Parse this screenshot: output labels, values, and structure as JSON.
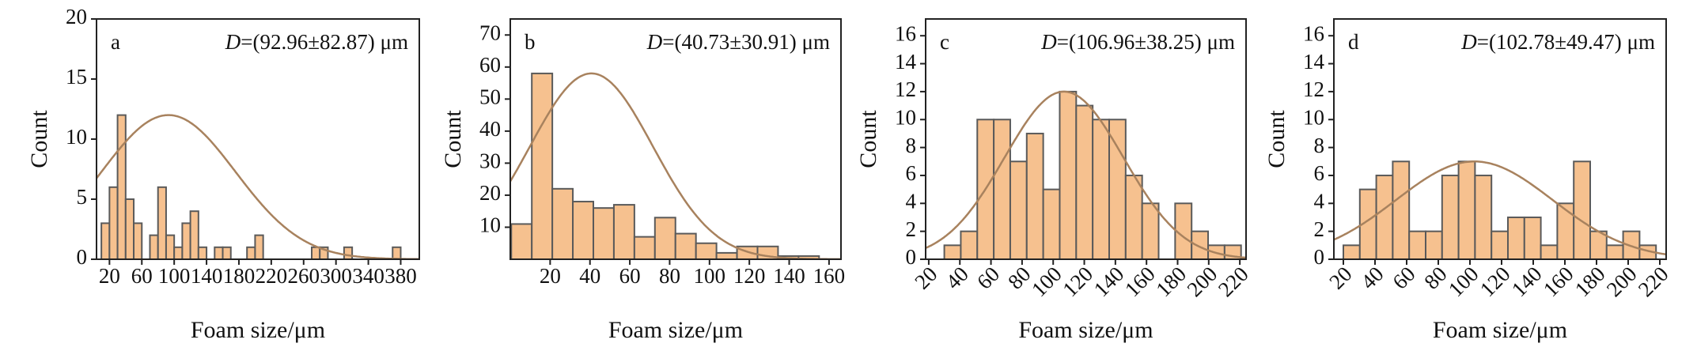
{
  "chart_data": [
    {
      "type": "histogram",
      "letter": "a",
      "annotation_symbol": "D",
      "annotation": "=(92.96±82.87) μm",
      "xlabel": "Foam size/μm",
      "ylabel": "Count",
      "color": "#f6c18f",
      "edge_color": "#5a5a5a",
      "fit_color": "#a8825e",
      "bins": [
        10,
        20,
        30,
        40,
        50,
        60,
        70,
        80,
        90,
        100,
        110,
        120,
        130,
        140,
        150,
        160,
        170,
        180,
        190,
        200,
        210,
        220,
        230,
        240,
        250,
        260,
        270,
        280,
        290,
        300,
        310,
        320,
        330,
        340,
        350,
        360,
        370,
        380
      ],
      "values": [
        3,
        6,
        12,
        5,
        3,
        0,
        2,
        6,
        2,
        1,
        3,
        4,
        1,
        0,
        1,
        1,
        0,
        0,
        1,
        2,
        0,
        0,
        0,
        0,
        0,
        0,
        1,
        1,
        0,
        0,
        1,
        0,
        0,
        0,
        0,
        0,
        1
      ],
      "fit": {
        "mean": 92.96,
        "sd": 82.87,
        "peak": 12
      },
      "xlim": [
        4,
        403
      ],
      "ylim": [
        0,
        20
      ],
      "xticks": [
        20,
        60,
        100,
        140,
        180,
        220,
        260,
        300,
        340,
        380
      ],
      "yticks": [
        0,
        5,
        10,
        15,
        20
      ],
      "rotate_xticks": false
    },
    {
      "type": "histogram",
      "letter": "b",
      "annotation_symbol": "D",
      "annotation": "=(40.73±30.91) μm",
      "xlabel": "Foam size/μm",
      "ylabel": "Count",
      "color": "#f6c18f",
      "edge_color": "#5a5a5a",
      "fit_color": "#a8825e",
      "bins": [
        0.5,
        10.8,
        21.1,
        31.4,
        41.7,
        52,
        62.3,
        72.6,
        82.9,
        93.2,
        103.5,
        113.8,
        124.1,
        134.4,
        144.7,
        155
      ],
      "values": [
        11,
        58,
        22,
        18,
        16,
        17,
        7,
        13,
        8,
        5,
        2,
        4,
        4,
        1,
        1
      ],
      "fit": {
        "mean": 40.73,
        "sd": 30.91,
        "peak": 58
      },
      "xlim": [
        0,
        166
      ],
      "ylim": [
        0,
        75
      ],
      "xticks": [
        20,
        40,
        60,
        80,
        100,
        120,
        140,
        160
      ],
      "yticks": [
        10,
        20,
        30,
        40,
        50,
        60,
        70
      ],
      "rotate_xticks": false
    },
    {
      "type": "histogram",
      "letter": "c",
      "annotation_symbol": "D",
      "annotation": "=(106.96±38.25) μm",
      "xlabel": "Foam size/μm",
      "ylabel": "Count",
      "color": "#f6c18f",
      "edge_color": "#5a5a5a",
      "fit_color": "#a8825e",
      "bins": [
        30,
        40.6,
        51.2,
        61.8,
        72.4,
        83,
        93.6,
        104.2,
        114.8,
        125.4,
        136,
        146.6,
        157.2,
        167.8,
        178.4,
        189,
        199.6,
        210.2,
        220.8
      ],
      "values": [
        1,
        2,
        10,
        10,
        7,
        9,
        5,
        12,
        11,
        10,
        10,
        6,
        4,
        0,
        4,
        2,
        1,
        1
      ],
      "fit": {
        "mean": 106.96,
        "sd": 38.25,
        "peak": 12
      },
      "xlim": [
        18,
        224
      ],
      "ylim": [
        0,
        17.2
      ],
      "xticks": [
        20,
        40,
        60,
        80,
        100,
        120,
        140,
        160,
        180,
        200,
        220
      ],
      "yticks": [
        0,
        2,
        4,
        6,
        8,
        10,
        12,
        14,
        16
      ],
      "rotate_xticks": true
    },
    {
      "type": "histogram",
      "letter": "d",
      "annotation_symbol": "D",
      "annotation": "=(102.78±49.47) μm",
      "xlabel": "Foam size/μm",
      "ylabel": "Count",
      "color": "#f6c18f",
      "edge_color": "#5a5a5a",
      "fit_color": "#a8825e",
      "bins": [
        20,
        30.4,
        40.8,
        51.2,
        61.6,
        72,
        82.4,
        92.8,
        103.2,
        113.6,
        124,
        134.4,
        144.8,
        155.2,
        165.6,
        176,
        186.4,
        196.8,
        207.2,
        217.6
      ],
      "values": [
        1,
        5,
        6,
        7,
        2,
        2,
        6,
        7,
        6,
        2,
        3,
        3,
        1,
        4,
        7,
        2,
        1,
        2,
        1
      ],
      "fit": {
        "mean": 102.78,
        "sd": 49.47,
        "peak": 7
      },
      "xlim": [
        14,
        224
      ],
      "ylim": [
        0,
        17.2
      ],
      "xticks": [
        20,
        40,
        60,
        80,
        100,
        120,
        140,
        160,
        180,
        200,
        220
      ],
      "yticks": [
        0,
        2,
        4,
        6,
        8,
        10,
        12,
        14,
        16
      ],
      "rotate_xticks": true
    }
  ]
}
